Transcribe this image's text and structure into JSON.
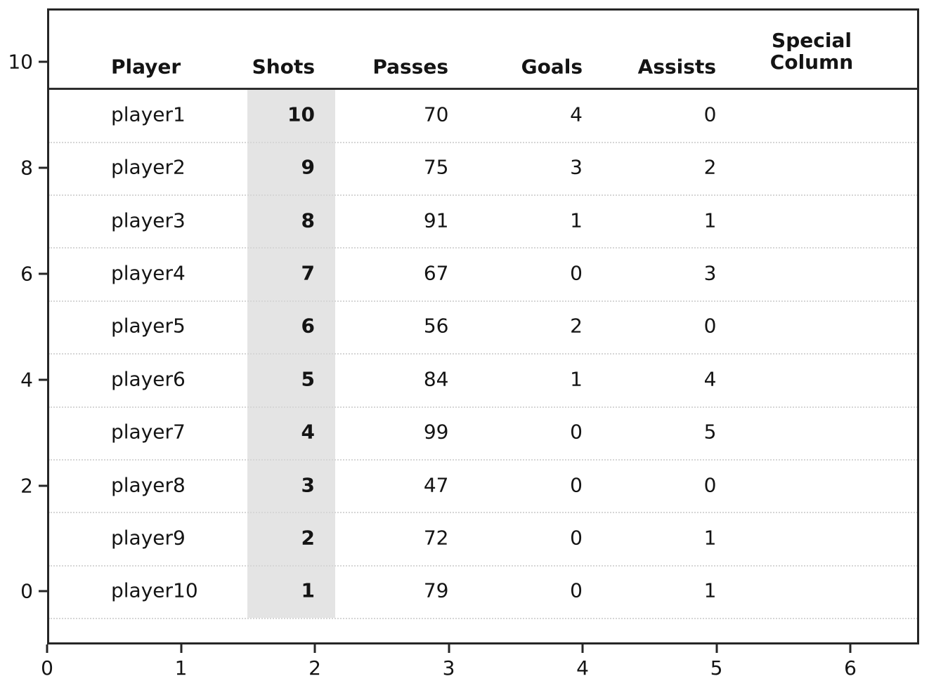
{
  "figure": {
    "background": "#ffffff"
  },
  "chart_data": {
    "type": "table",
    "title": "",
    "columns": [
      {
        "key": "player",
        "label": "Player",
        "align": "left"
      },
      {
        "key": "shots",
        "label": "Shots",
        "align": "right",
        "bold": true,
        "highlighted": true
      },
      {
        "key": "passes",
        "label": "Passes",
        "align": "right"
      },
      {
        "key": "goals",
        "label": "Goals",
        "align": "right"
      },
      {
        "key": "assists",
        "label": "Assists",
        "align": "right"
      },
      {
        "key": "special",
        "label": "Special Column",
        "label_lines": [
          "Special",
          "Column"
        ],
        "align": "center"
      }
    ],
    "rows": [
      {
        "player": "player1",
        "shots": 10,
        "passes": 70,
        "goals": 4,
        "assists": 0,
        "special": ""
      },
      {
        "player": "player2",
        "shots": 9,
        "passes": 75,
        "goals": 3,
        "assists": 2,
        "special": ""
      },
      {
        "player": "player3",
        "shots": 8,
        "passes": 91,
        "goals": 1,
        "assists": 1,
        "special": ""
      },
      {
        "player": "player4",
        "shots": 7,
        "passes": 67,
        "goals": 0,
        "assists": 3,
        "special": ""
      },
      {
        "player": "player5",
        "shots": 6,
        "passes": 56,
        "goals": 2,
        "assists": 0,
        "special": ""
      },
      {
        "player": "player6",
        "shots": 5,
        "passes": 84,
        "goals": 1,
        "assists": 4,
        "special": ""
      },
      {
        "player": "player7",
        "shots": 4,
        "passes": 99,
        "goals": 0,
        "assists": 5,
        "special": ""
      },
      {
        "player": "player8",
        "shots": 3,
        "passes": 47,
        "goals": 0,
        "assists": 0,
        "special": ""
      },
      {
        "player": "player9",
        "shots": 2,
        "passes": 72,
        "goals": 0,
        "assists": 1,
        "special": ""
      },
      {
        "player": "player10",
        "shots": 1,
        "passes": 79,
        "goals": 0,
        "assists": 1,
        "special": ""
      }
    ],
    "x_axis": {
      "ticks": [
        "0",
        "1",
        "2",
        "3",
        "4",
        "5",
        "6"
      ],
      "range": [
        0,
        6.5
      ]
    },
    "y_axis": {
      "ticks": [
        "10",
        "8",
        "6",
        "4",
        "2",
        "0"
      ],
      "range": [
        -0.9,
        11.1
      ]
    },
    "grid": "dotted horizontal row separators",
    "legend": "none",
    "styles": {
      "highlight_color": "#e4e4e4",
      "gridline_color": "#d6d6d6",
      "axis_color": "#262626",
      "text_color": "#141414"
    }
  }
}
